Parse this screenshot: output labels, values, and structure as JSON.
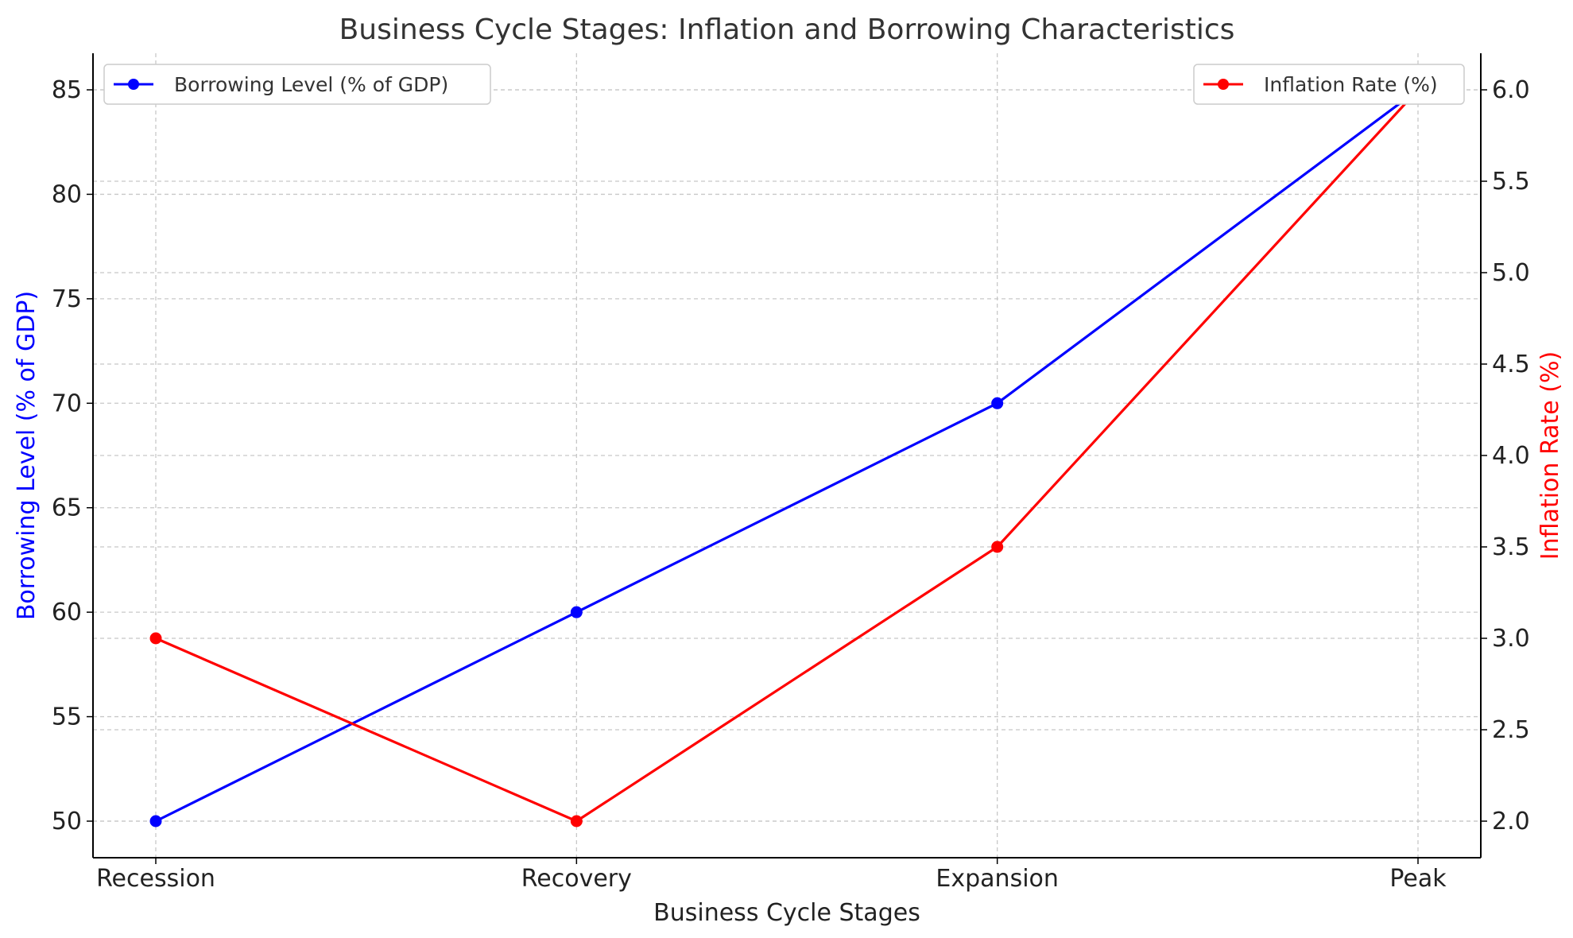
{
  "chart_data": {
    "type": "line",
    "title": "Business Cycle Stages: Inflation and Borrowing Characteristics",
    "xlabel": "Business Cycle Stages",
    "categories": [
      "Recession",
      "Recovery",
      "Expansion",
      "Peak"
    ],
    "y_left": {
      "label": "Borrowing Level (% of GDP)",
      "color": "#0000ff",
      "ylim": [
        48.25,
        86.75
      ],
      "ticks": [
        50,
        55,
        60,
        65,
        70,
        75,
        80,
        85
      ]
    },
    "y_right": {
      "label": "Inflation Rate (%)",
      "color": "#ff0000",
      "ylim": [
        1.8,
        6.2
      ],
      "ticks": [
        "2.0",
        "2.5",
        "3.0",
        "3.5",
        "4.0",
        "4.5",
        "5.0",
        "5.5",
        "6.0"
      ]
    },
    "series": [
      {
        "name": "Borrowing Level (% of GDP)",
        "axis": "left",
        "color": "#0000ff",
        "values": [
          50,
          60,
          70,
          85
        ]
      },
      {
        "name": "Inflation Rate (%)",
        "axis": "right",
        "color": "#ff0000",
        "values": [
          3.0,
          2.0,
          3.5,
          6.0
        ]
      }
    ],
    "grid": true,
    "legends": [
      {
        "series": 0,
        "placement": "top-left"
      },
      {
        "series": 1,
        "placement": "top-right"
      }
    ]
  }
}
